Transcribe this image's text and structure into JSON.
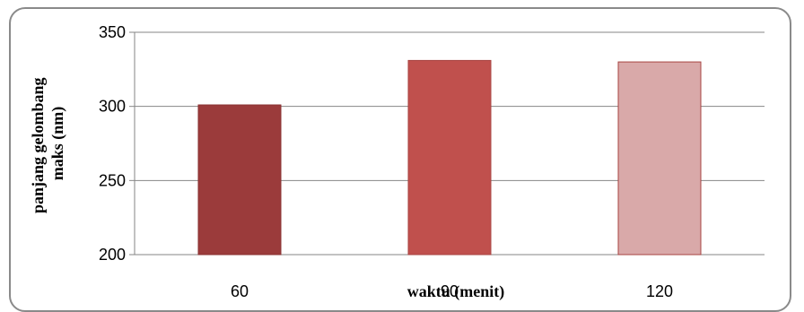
{
  "chart_data": {
    "type": "bar",
    "categories": [
      "60",
      "90",
      "120"
    ],
    "values": [
      301,
      331,
      330
    ],
    "colors": [
      "#9b3b3b",
      "#c0504d",
      "#d9a9a9"
    ],
    "edge_colors": [
      "#8a3232",
      "#a84442",
      "#a84442"
    ],
    "xlabel": "waktu (menit)",
    "ylabel": [
      "panjang gelombang",
      "maks (nm)"
    ],
    "ylim": [
      200,
      350
    ],
    "yticks": [
      200,
      250,
      300,
      350
    ],
    "grid": true,
    "legend": "none"
  }
}
